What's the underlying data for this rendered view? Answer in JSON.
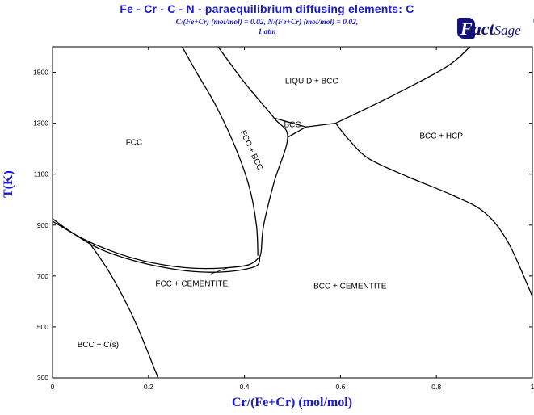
{
  "header": {
    "title": "Fe - Cr - C - N  -  paraequilibrium diffusing elements: C",
    "subtitle_line1": "C/(Fe+Cr) (mol/mol)  = 0.02,  N/(Fe+Cr) (mol/mol)  = 0.02,",
    "subtitle_line2": "1 atm",
    "logo_text_a": "F",
    "logo_text_b": "act",
    "logo_text_c": "Sage",
    "logo_tm": "TM"
  },
  "colors": {
    "title": "#1a1ad0",
    "lines": "#000000",
    "logo": "#12127a"
  },
  "chart_data": {
    "type": "phase-diagram",
    "xlabel": "Cr/(Fe+Cr) (mol/mol)",
    "ylabel": "T(K)",
    "xlim": [
      0,
      1
    ],
    "ylim": [
      300,
      1600
    ],
    "xticks": [
      0,
      0.2,
      0.4,
      0.6,
      0.8,
      1
    ],
    "xtick_labels": [
      "0",
      "0.2",
      "0.4",
      "0.6",
      "0.8",
      "1"
    ],
    "yticks": [
      300,
      500,
      700,
      900,
      1100,
      1300,
      1500
    ],
    "ytick_labels": [
      "300",
      "500",
      "700",
      "900",
      "1100",
      "1300",
      "1500"
    ],
    "grid": false,
    "boundaries": [
      {
        "name": "fcc-bcc-left",
        "points": [
          [
            0.27,
            1600
          ],
          [
            0.3,
            1500
          ],
          [
            0.34,
            1370
          ],
          [
            0.38,
            1210
          ],
          [
            0.41,
            1050
          ],
          [
            0.425,
            900
          ],
          [
            0.428,
            780
          ]
        ]
      },
      {
        "name": "fcc-bcc-right",
        "points": [
          [
            0.345,
            1600
          ],
          [
            0.4,
            1460
          ],
          [
            0.462,
            1320
          ],
          [
            0.49,
            1245
          ],
          [
            0.462,
            1070
          ],
          [
            0.44,
            900
          ],
          [
            0.435,
            800
          ],
          [
            0.432,
            775
          ]
        ]
      },
      {
        "name": "liquid-bcc-left",
        "points": [
          [
            0.462,
            1320
          ],
          [
            0.528,
            1285
          ]
        ]
      },
      {
        "name": "bcc-pocket-lower",
        "points": [
          [
            0.49,
            1245
          ],
          [
            0.528,
            1285
          ]
        ]
      },
      {
        "name": "liquid-bcc-mid",
        "points": [
          [
            0.528,
            1285
          ],
          [
            0.59,
            1300
          ]
        ]
      },
      {
        "name": "liquid-bcc-right",
        "points": [
          [
            0.59,
            1300
          ],
          [
            0.7,
            1400
          ],
          [
            0.82,
            1520
          ],
          [
            0.87,
            1600
          ]
        ]
      },
      {
        "name": "bcc-hcp",
        "points": [
          [
            0.59,
            1300
          ],
          [
            0.62,
            1230
          ],
          [
            0.66,
            1160
          ],
          [
            0.74,
            1090
          ],
          [
            0.83,
            1020
          ],
          [
            0.9,
            950
          ],
          [
            0.95,
            830
          ],
          [
            1.0,
            620
          ]
        ]
      },
      {
        "name": "fcc-cementite-upper",
        "points": [
          [
            0.0,
            925
          ],
          [
            0.05,
            860
          ],
          [
            0.12,
            800
          ],
          [
            0.2,
            755
          ],
          [
            0.3,
            730
          ],
          [
            0.4,
            740
          ],
          [
            0.432,
            775
          ]
        ]
      },
      {
        "name": "fcc-cementite-lower",
        "points": [
          [
            0.0,
            915
          ],
          [
            0.04,
            870
          ],
          [
            0.1,
            805
          ],
          [
            0.18,
            755
          ],
          [
            0.26,
            725
          ],
          [
            0.32,
            715
          ],
          [
            0.38,
            720
          ],
          [
            0.425,
            740
          ],
          [
            0.432,
            775
          ]
        ]
      },
      {
        "name": "bcc-carbon",
        "points": [
          [
            0.075,
            835
          ],
          [
            0.12,
            710
          ],
          [
            0.17,
            530
          ],
          [
            0.22,
            300
          ]
        ]
      },
      {
        "name": "label-pointer",
        "points": [
          [
            0.33,
            708
          ],
          [
            0.37,
            735
          ]
        ]
      }
    ],
    "annotations": [
      {
        "text": "LIQUID + BCC",
        "x": 0.54,
        "y": 1455
      },
      {
        "text": "FCC",
        "x": 0.17,
        "y": 1215
      },
      {
        "text": "BCC",
        "x": 0.5,
        "y": 1285
      },
      {
        "text": "FCC + BCC",
        "x": 0.41,
        "y": 1190,
        "rotate": 65
      },
      {
        "text": "BCC + HCP",
        "x": 0.81,
        "y": 1240
      },
      {
        "text": "FCC + CEMENTITE",
        "x": 0.29,
        "y": 660
      },
      {
        "text": "BCC + CEMENTITE",
        "x": 0.62,
        "y": 650
      },
      {
        "text": "BCC + C(s)",
        "x": 0.095,
        "y": 420
      }
    ]
  }
}
